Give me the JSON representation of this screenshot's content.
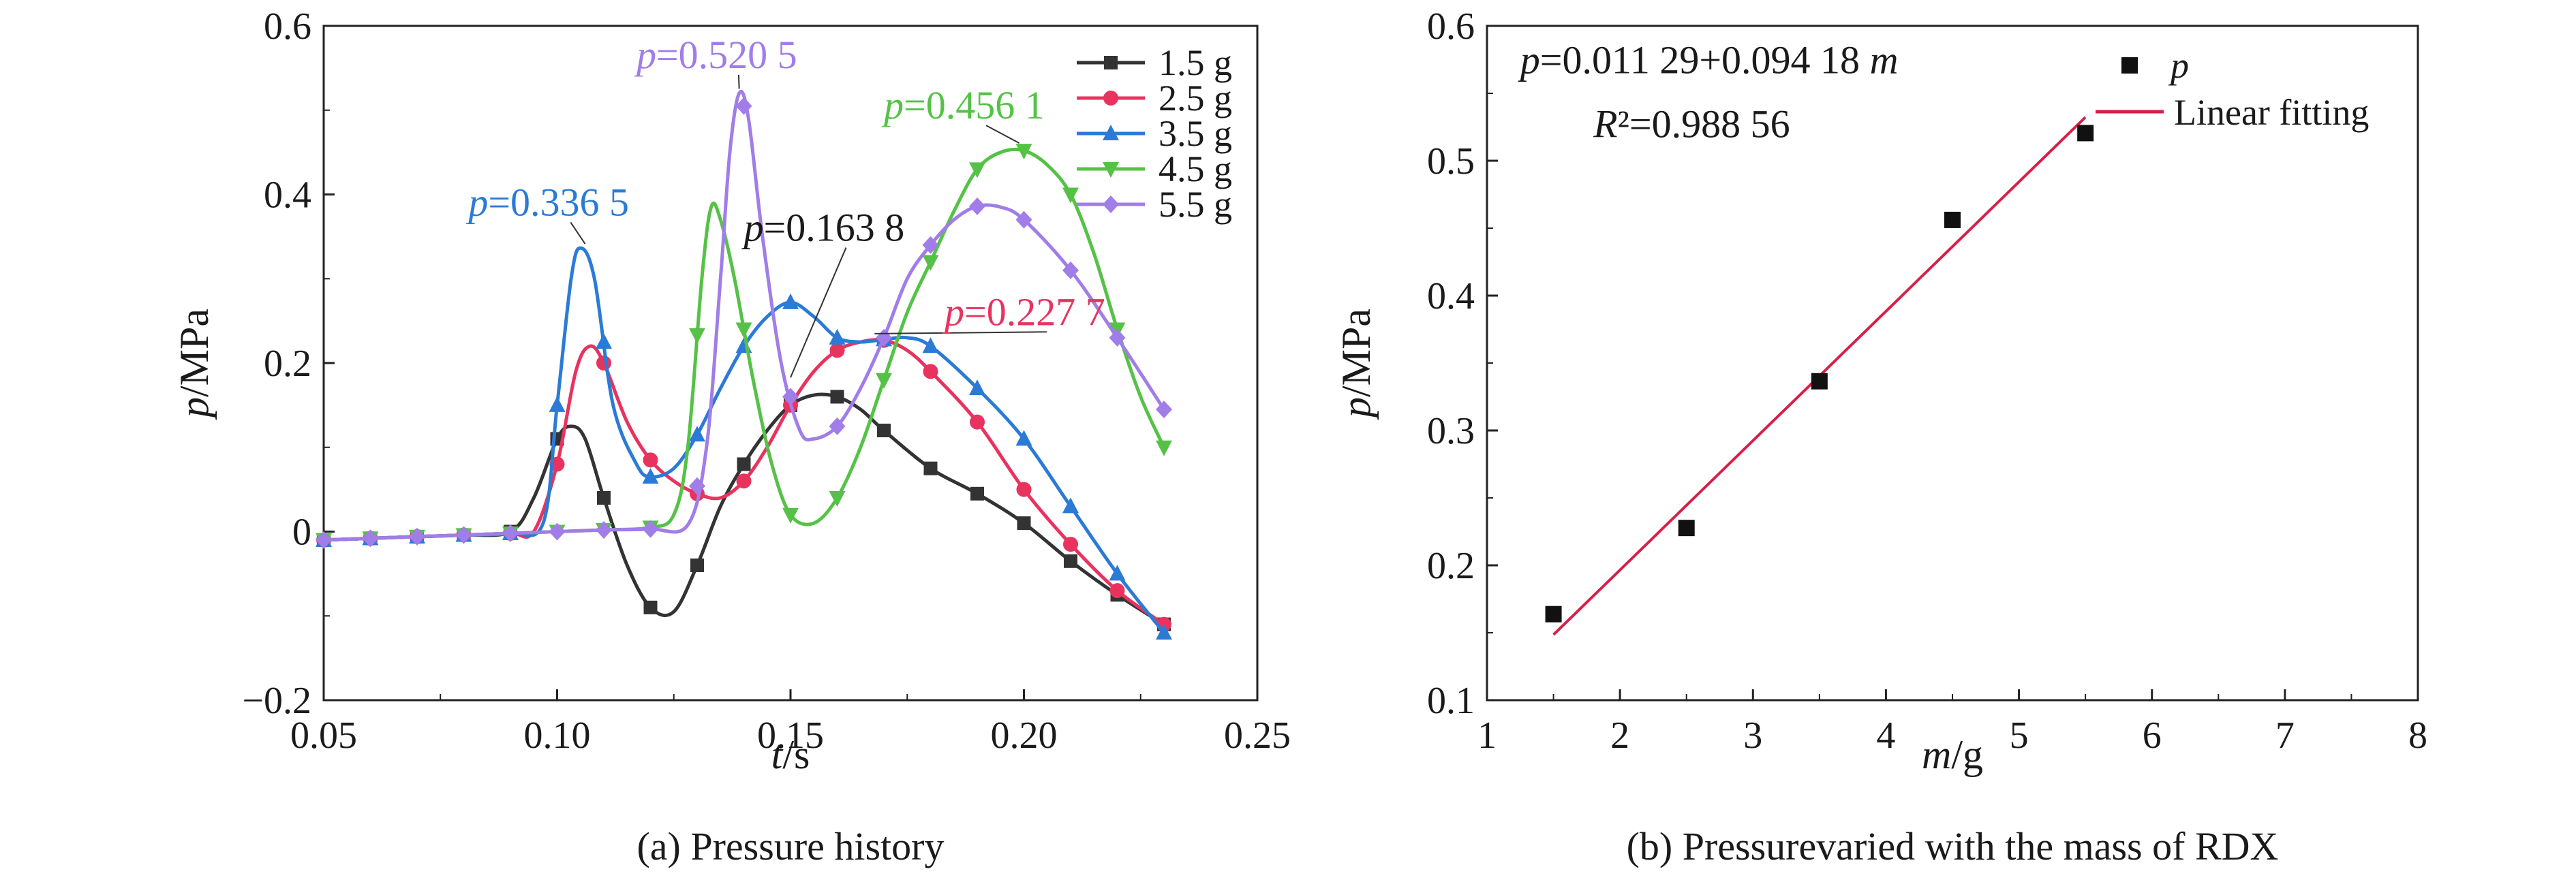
{
  "chart_data": [
    {
      "type": "line",
      "caption": "(a) Pressure history",
      "xlabel": "t/s",
      "ylabel": "p/MPa",
      "xlim": [
        0.05,
        0.25
      ],
      "ylim": [
        -0.2,
        0.6
      ],
      "xticks": [
        "0.05",
        "0.10",
        "0.15",
        "0.20",
        "0.25"
      ],
      "yticks": [
        "−0.2",
        "0",
        "0.2",
        "0.4",
        "0.6"
      ],
      "legend_position": "top-right",
      "series": [
        {
          "name": "1.5 g",
          "color": "#333333",
          "marker": "square",
          "points": [
            [
              0.05,
              -0.01
            ],
            [
              0.06,
              -0.008
            ],
            [
              0.07,
              -0.006
            ],
            [
              0.08,
              -0.004
            ],
            [
              0.09,
              0.0
            ],
            [
              0.095,
              0.04
            ],
            [
              0.1,
              0.11
            ],
            [
              0.103,
              0.125
            ],
            [
              0.106,
              0.11
            ],
            [
              0.11,
              0.04
            ],
            [
              0.115,
              -0.04
            ],
            [
              0.12,
              -0.09
            ],
            [
              0.125,
              -0.095
            ],
            [
              0.13,
              -0.04
            ],
            [
              0.135,
              0.03
            ],
            [
              0.14,
              0.08
            ],
            [
              0.145,
              0.12
            ],
            [
              0.15,
              0.15
            ],
            [
              0.155,
              0.162
            ],
            [
              0.16,
              0.16
            ],
            [
              0.165,
              0.145
            ],
            [
              0.17,
              0.12
            ],
            [
              0.18,
              0.075
            ],
            [
              0.19,
              0.045
            ],
            [
              0.2,
              0.01
            ],
            [
              0.21,
              -0.035
            ],
            [
              0.22,
              -0.075
            ],
            [
              0.23,
              -0.11
            ]
          ]
        },
        {
          "name": "2.5 g",
          "color": "#e8335f",
          "marker": "circle",
          "points": [
            [
              0.05,
              -0.01
            ],
            [
              0.06,
              -0.008
            ],
            [
              0.07,
              -0.006
            ],
            [
              0.08,
              -0.004
            ],
            [
              0.09,
              -0.002
            ],
            [
              0.095,
              0.0
            ],
            [
              0.1,
              0.08
            ],
            [
              0.104,
              0.19
            ],
            [
              0.107,
              0.22
            ],
            [
              0.11,
              0.2
            ],
            [
              0.115,
              0.13
            ],
            [
              0.12,
              0.085
            ],
            [
              0.125,
              0.06
            ],
            [
              0.13,
              0.045
            ],
            [
              0.135,
              0.04
            ],
            [
              0.14,
              0.06
            ],
            [
              0.145,
              0.1
            ],
            [
              0.15,
              0.15
            ],
            [
              0.155,
              0.19
            ],
            [
              0.16,
              0.215
            ],
            [
              0.165,
              0.225
            ],
            [
              0.17,
              0.227
            ],
            [
              0.175,
              0.215
            ],
            [
              0.18,
              0.19
            ],
            [
              0.19,
              0.13
            ],
            [
              0.2,
              0.05
            ],
            [
              0.21,
              -0.015
            ],
            [
              0.22,
              -0.07
            ],
            [
              0.23,
              -0.11
            ]
          ]
        },
        {
          "name": "3.5 g",
          "color": "#2b7bd6",
          "marker": "triangle",
          "points": [
            [
              0.05,
              -0.01
            ],
            [
              0.06,
              -0.008
            ],
            [
              0.07,
              -0.006
            ],
            [
              0.08,
              -0.004
            ],
            [
              0.09,
              -0.002
            ],
            [
              0.097,
              0.01
            ],
            [
              0.1,
              0.15
            ],
            [
              0.103,
              0.3
            ],
            [
              0.105,
              0.3365
            ],
            [
              0.108,
              0.3
            ],
            [
              0.112,
              0.15
            ],
            [
              0.117,
              0.08
            ],
            [
              0.12,
              0.065
            ],
            [
              0.125,
              0.075
            ],
            [
              0.13,
              0.115
            ],
            [
              0.135,
              0.17
            ],
            [
              0.14,
              0.22
            ],
            [
              0.145,
              0.255
            ],
            [
              0.15,
              0.272
            ],
            [
              0.155,
              0.255
            ],
            [
              0.16,
              0.23
            ],
            [
              0.165,
              0.225
            ],
            [
              0.17,
              0.228
            ],
            [
              0.175,
              0.23
            ],
            [
              0.18,
              0.22
            ],
            [
              0.19,
              0.17
            ],
            [
              0.2,
              0.11
            ],
            [
              0.21,
              0.03
            ],
            [
              0.22,
              -0.05
            ],
            [
              0.23,
              -0.12
            ]
          ]
        },
        {
          "name": "4.5 g",
          "color": "#55c247",
          "marker": "triangle-down",
          "points": [
            [
              0.05,
              -0.01
            ],
            [
              0.06,
              -0.008
            ],
            [
              0.07,
              -0.006
            ],
            [
              0.08,
              -0.004
            ],
            [
              0.09,
              -0.002
            ],
            [
              0.1,
              0.0
            ],
            [
              0.11,
              0.002
            ],
            [
              0.12,
              0.005
            ],
            [
              0.125,
              0.02
            ],
            [
              0.128,
              0.1
            ],
            [
              0.131,
              0.3
            ],
            [
              0.133,
              0.385
            ],
            [
              0.135,
              0.37
            ],
            [
              0.138,
              0.3
            ],
            [
              0.142,
              0.18
            ],
            [
              0.146,
              0.08
            ],
            [
              0.15,
              0.02
            ],
            [
              0.155,
              0.01
            ],
            [
              0.16,
              0.04
            ],
            [
              0.165,
              0.1
            ],
            [
              0.17,
              0.18
            ],
            [
              0.175,
              0.26
            ],
            [
              0.18,
              0.32
            ],
            [
              0.185,
              0.38
            ],
            [
              0.19,
              0.43
            ],
            [
              0.195,
              0.45
            ],
            [
              0.2,
              0.452
            ],
            [
              0.205,
              0.435
            ],
            [
              0.21,
              0.4
            ],
            [
              0.215,
              0.33
            ],
            [
              0.22,
              0.24
            ],
            [
              0.225,
              0.16
            ],
            [
              0.23,
              0.1
            ]
          ]
        },
        {
          "name": "5.5 g",
          "color": "#a07de8",
          "marker": "diamond",
          "points": [
            [
              0.05,
              -0.01
            ],
            [
              0.06,
              -0.008
            ],
            [
              0.07,
              -0.006
            ],
            [
              0.08,
              -0.004
            ],
            [
              0.09,
              -0.002
            ],
            [
              0.1,
              0.0
            ],
            [
              0.11,
              0.002
            ],
            [
              0.12,
              0.003
            ],
            [
              0.128,
              0.008
            ],
            [
              0.132,
              0.1
            ],
            [
              0.135,
              0.3
            ],
            [
              0.137,
              0.45
            ],
            [
              0.139,
              0.52
            ],
            [
              0.141,
              0.49
            ],
            [
              0.144,
              0.35
            ],
            [
              0.148,
              0.2
            ],
            [
              0.152,
              0.12
            ],
            [
              0.155,
              0.11
            ],
            [
              0.16,
              0.125
            ],
            [
              0.165,
              0.17
            ],
            [
              0.17,
              0.23
            ],
            [
              0.175,
              0.3
            ],
            [
              0.18,
              0.34
            ],
            [
              0.185,
              0.37
            ],
            [
              0.19,
              0.386
            ],
            [
              0.195,
              0.385
            ],
            [
              0.2,
              0.37
            ],
            [
              0.21,
              0.31
            ],
            [
              0.22,
              0.23
            ],
            [
              0.23,
              0.145
            ]
          ]
        }
      ],
      "annotations": [
        {
          "text": "p=0.336 5",
          "color": "#2b7bd6",
          "x": 0.106,
          "y": 0.3365,
          "tx": 0.081,
          "ty": 0.375
        },
        {
          "text": "p=0.520 5",
          "color": "#a07de8",
          "x": 0.139,
          "y": 0.5205,
          "tx": 0.117,
          "ty": 0.55
        },
        {
          "text": "p=0.456 1",
          "color": "#55c247",
          "x": 0.199,
          "y": 0.4561,
          "tx": 0.17,
          "ty": 0.49
        },
        {
          "text": "p=0.163 8",
          "color": "#1a1a1a",
          "x": 0.15,
          "y": 0.178,
          "tx": 0.14,
          "ty": 0.345
        },
        {
          "text": "p=0.227 7",
          "color": "#e8335f",
          "x": 0.168,
          "y": 0.23,
          "tx": 0.183,
          "ty": 0.245
        }
      ]
    },
    {
      "type": "scatter",
      "caption": "(b) Pressurevaried with the mass of RDX",
      "xlabel": "m/g",
      "ylabel": "p/MPa",
      "xlim": [
        1,
        8
      ],
      "ylim": [
        0.1,
        0.6
      ],
      "xticks": [
        "1",
        "2",
        "3",
        "4",
        "5",
        "6",
        "7",
        "8"
      ],
      "yticks": [
        "0.1",
        "0.2",
        "0.3",
        "0.4",
        "0.5",
        "0.6"
      ],
      "legend_position": "top-right",
      "points": {
        "name": "p",
        "color": "#111111",
        "x": [
          1.5,
          2.5,
          3.5,
          4.5,
          5.5
        ],
        "y": [
          0.1638,
          0.2277,
          0.3365,
          0.4561,
          0.5205
        ]
      },
      "fit": {
        "name": "Linear fitting",
        "color": "#d81f48",
        "intercept": 0.01129,
        "slope": 0.09418,
        "x_range": [
          1.5,
          5.5
        ]
      },
      "equation": "p=0.011 29+0.094 18 m",
      "r2": "R²=0.988 56"
    }
  ]
}
